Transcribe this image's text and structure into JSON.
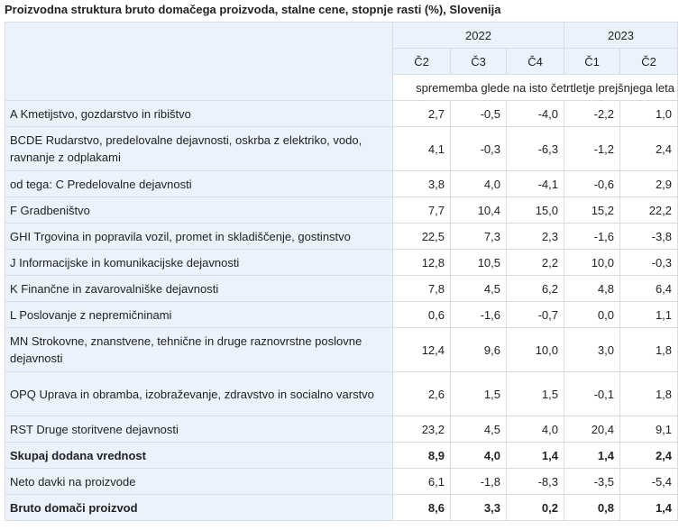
{
  "title": "Proizvodna struktura bruto domačega proizvoda, stalne cene, stopnje rasti (%), Slovenija",
  "years": [
    {
      "label": "2022",
      "span": 3
    },
    {
      "label": "2023",
      "span": 2
    }
  ],
  "quarters": [
    "Č2",
    "Č3",
    "Č4",
    "Č1",
    "Č2"
  ],
  "measure_note": "sprememba glede na isto četrtletje prejšnjega leta",
  "rows": [
    {
      "label": "A Kmetijstvo, gozdarstvo in ribištvo",
      "values": [
        "2,7",
        "-0,5",
        "-4,0",
        "-2,2",
        "1,0"
      ],
      "bold": false
    },
    {
      "label": "BCDE Rudarstvo, predelovalne dejavnosti, oskrba z elektriko, vodo, ravnanje z odplakami",
      "values": [
        "4,1",
        "-0,3",
        "-6,3",
        "-1,2",
        "2,4"
      ],
      "bold": false
    },
    {
      "label": "od tega: C Predelovalne dejavnosti",
      "values": [
        "3,8",
        "4,0",
        "-4,1",
        "-0,6",
        "2,9"
      ],
      "bold": false
    },
    {
      "label": "F Gradbeništvo",
      "values": [
        "7,7",
        "10,4",
        "15,0",
        "15,2",
        "22,2"
      ],
      "bold": false
    },
    {
      "label": "GHI Trgovina in popravila vozil, promet in skladiščenje, gostinstvo",
      "values": [
        "22,5",
        "7,3",
        "2,3",
        "-1,6",
        "-3,8"
      ],
      "bold": false
    },
    {
      "label": "J Informacijske in komunikacijske dejavnosti",
      "values": [
        "12,8",
        "10,5",
        "2,2",
        "10,0",
        "-0,3"
      ],
      "bold": false
    },
    {
      "label": "K Finančne in zavarovalniške dejavnosti",
      "values": [
        "7,8",
        "4,5",
        "6,2",
        "4,8",
        "6,4"
      ],
      "bold": false
    },
    {
      "label": "L Poslovanje z nepremičninami",
      "values": [
        "0,6",
        "-1,6",
        "-0,7",
        "0,0",
        "1,1"
      ],
      "bold": false
    },
    {
      "label": "MN Strokovne, znanstvene, tehnične in druge raznovrstne poslovne dejavnosti",
      "values": [
        "12,4",
        "9,6",
        "10,0",
        "3,0",
        "1,8"
      ],
      "bold": false
    },
    {
      "label": "OPQ Uprava in obramba, izobraževanje, zdravstvo in socialno varstvo",
      "values": [
        "2,6",
        "1,5",
        "1,5",
        "-0,1",
        "1,8"
      ],
      "bold": false
    },
    {
      "label": "RST Druge storitvene dejavnosti",
      "values": [
        "23,2",
        "4,5",
        "4,0",
        "20,4",
        "9,1"
      ],
      "bold": false
    },
    {
      "label": "Skupaj dodana vrednost",
      "values": [
        "8,9",
        "4,0",
        "1,4",
        "1,4",
        "2,4"
      ],
      "bold": true
    },
    {
      "label": "Neto davki na proizvode",
      "values": [
        "6,1",
        "-1,8",
        "-8,3",
        "-3,5",
        "-5,4"
      ],
      "bold": false
    },
    {
      "label": "Bruto domači proizvod",
      "values": [
        "8,6",
        "3,3",
        "0,2",
        "0,8",
        "1,4"
      ],
      "bold": true
    }
  ]
}
